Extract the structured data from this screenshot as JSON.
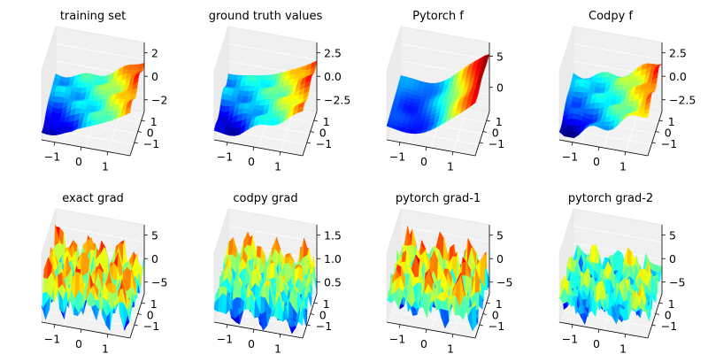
{
  "chart_data": [
    {
      "type": "surface3d",
      "title": "training set",
      "xticks": [
        "−1",
        "0",
        "1"
      ],
      "yticks": [
        "1",
        "0",
        "−1"
      ],
      "zticks": [
        "2",
        "0",
        "−2"
      ],
      "zlim": [
        -3,
        3
      ],
      "colormap": "jet",
      "surface": "smooth"
    },
    {
      "type": "surface3d",
      "title": "ground truth values",
      "xticks": [
        "−1",
        "0",
        "1"
      ],
      "yticks": [
        "1",
        "0",
        "−1"
      ],
      "zticks": [
        "2.5",
        "0.0",
        "−2.5"
      ],
      "zlim": [
        -4,
        4
      ],
      "colormap": "jet",
      "surface": "smooth"
    },
    {
      "type": "surface3d",
      "title": "Pytorch f",
      "xticks": [
        "−1",
        "0",
        "1"
      ],
      "yticks": [
        "1",
        "0",
        "−1"
      ],
      "zticks": [
        "5",
        "0"
      ],
      "zlim": [
        -4,
        6
      ],
      "colormap": "jet",
      "surface": "smooth"
    },
    {
      "type": "surface3d",
      "title": "Codpy f",
      "xticks": [
        "−1",
        "0",
        "1"
      ],
      "yticks": [
        "1",
        "0",
        "−1"
      ],
      "zticks": [
        "2.5",
        "0.0",
        "−2.5"
      ],
      "zlim": [
        -4,
        4
      ],
      "colormap": "jet",
      "surface": "smooth"
    },
    {
      "type": "surface3d",
      "title": "exact grad",
      "xticks": [
        "−1",
        "0",
        "1"
      ],
      "yticks": [
        "1",
        "0",
        "−1"
      ],
      "zticks": [
        "5",
        "0",
        "−5"
      ],
      "zlim": [
        -8,
        8
      ],
      "colormap": "jet",
      "surface": "spiky"
    },
    {
      "type": "surface3d",
      "title": "codpy grad",
      "xticks": [
        "−1",
        "0",
        "1"
      ],
      "yticks": [
        "1",
        "0",
        "−1"
      ],
      "zticks": [
        "1.5",
        "1.0",
        "0.5"
      ],
      "zlim": [
        0,
        2
      ],
      "colormap": "jet",
      "surface": "spiky"
    },
    {
      "type": "surface3d",
      "title": "pytorch grad-1",
      "xticks": [
        "−1",
        "0",
        "1"
      ],
      "yticks": [
        "1",
        "0",
        "−1"
      ],
      "zticks": [
        "5",
        "0",
        "−5"
      ],
      "zlim": [
        -8,
        8
      ],
      "colormap": "jet",
      "surface": "spiky"
    },
    {
      "type": "surface3d",
      "title": "pytorch grad-2",
      "xticks": [
        "−1",
        "0",
        "1"
      ],
      "yticks": [
        "1",
        "0",
        "−1"
      ],
      "zticks": [
        "5",
        "0",
        "−5"
      ],
      "zlim": [
        -8,
        8
      ],
      "colormap": "jet",
      "surface": "spiky"
    }
  ]
}
